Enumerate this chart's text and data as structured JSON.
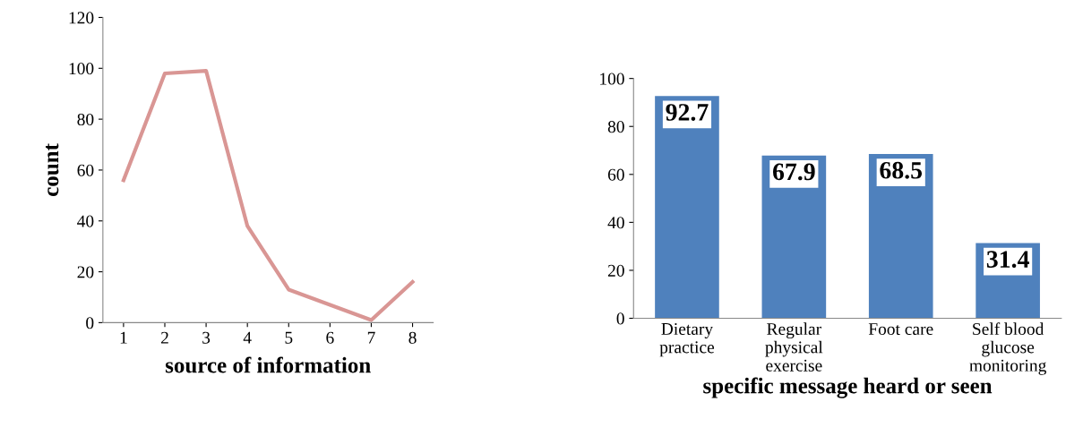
{
  "chart_data": [
    {
      "type": "line",
      "xlabel": "source of information",
      "ylabel": "count",
      "categories": [
        "1",
        "2",
        "3",
        "4",
        "5",
        "6",
        "7",
        "8"
      ],
      "series": [
        {
          "color": "#d99694",
          "values": [
            56,
            98,
            99,
            38,
            13,
            7,
            1,
            16
          ]
        }
      ],
      "ylim": [
        0,
        120
      ],
      "yticks": [
        0,
        20,
        40,
        60,
        80,
        100,
        120
      ],
      "grid": false,
      "marker": "none",
      "line_style": "solid"
    },
    {
      "type": "bar",
      "xlabel": "specific message heard or seen",
      "categories": [
        "Dietary\npractice",
        "Regular\nphysical\nexercise",
        "Foot care",
        "Self blood\nglucose\nmonitoring"
      ],
      "series": [
        {
          "color": "#4f81bd",
          "values": [
            92.7,
            67.9,
            68.5,
            31.4
          ]
        }
      ],
      "ylim": [
        0,
        100
      ],
      "yticks": [
        0,
        20,
        40,
        60,
        80,
        100
      ],
      "grid": false,
      "data_labels": true
    }
  ]
}
